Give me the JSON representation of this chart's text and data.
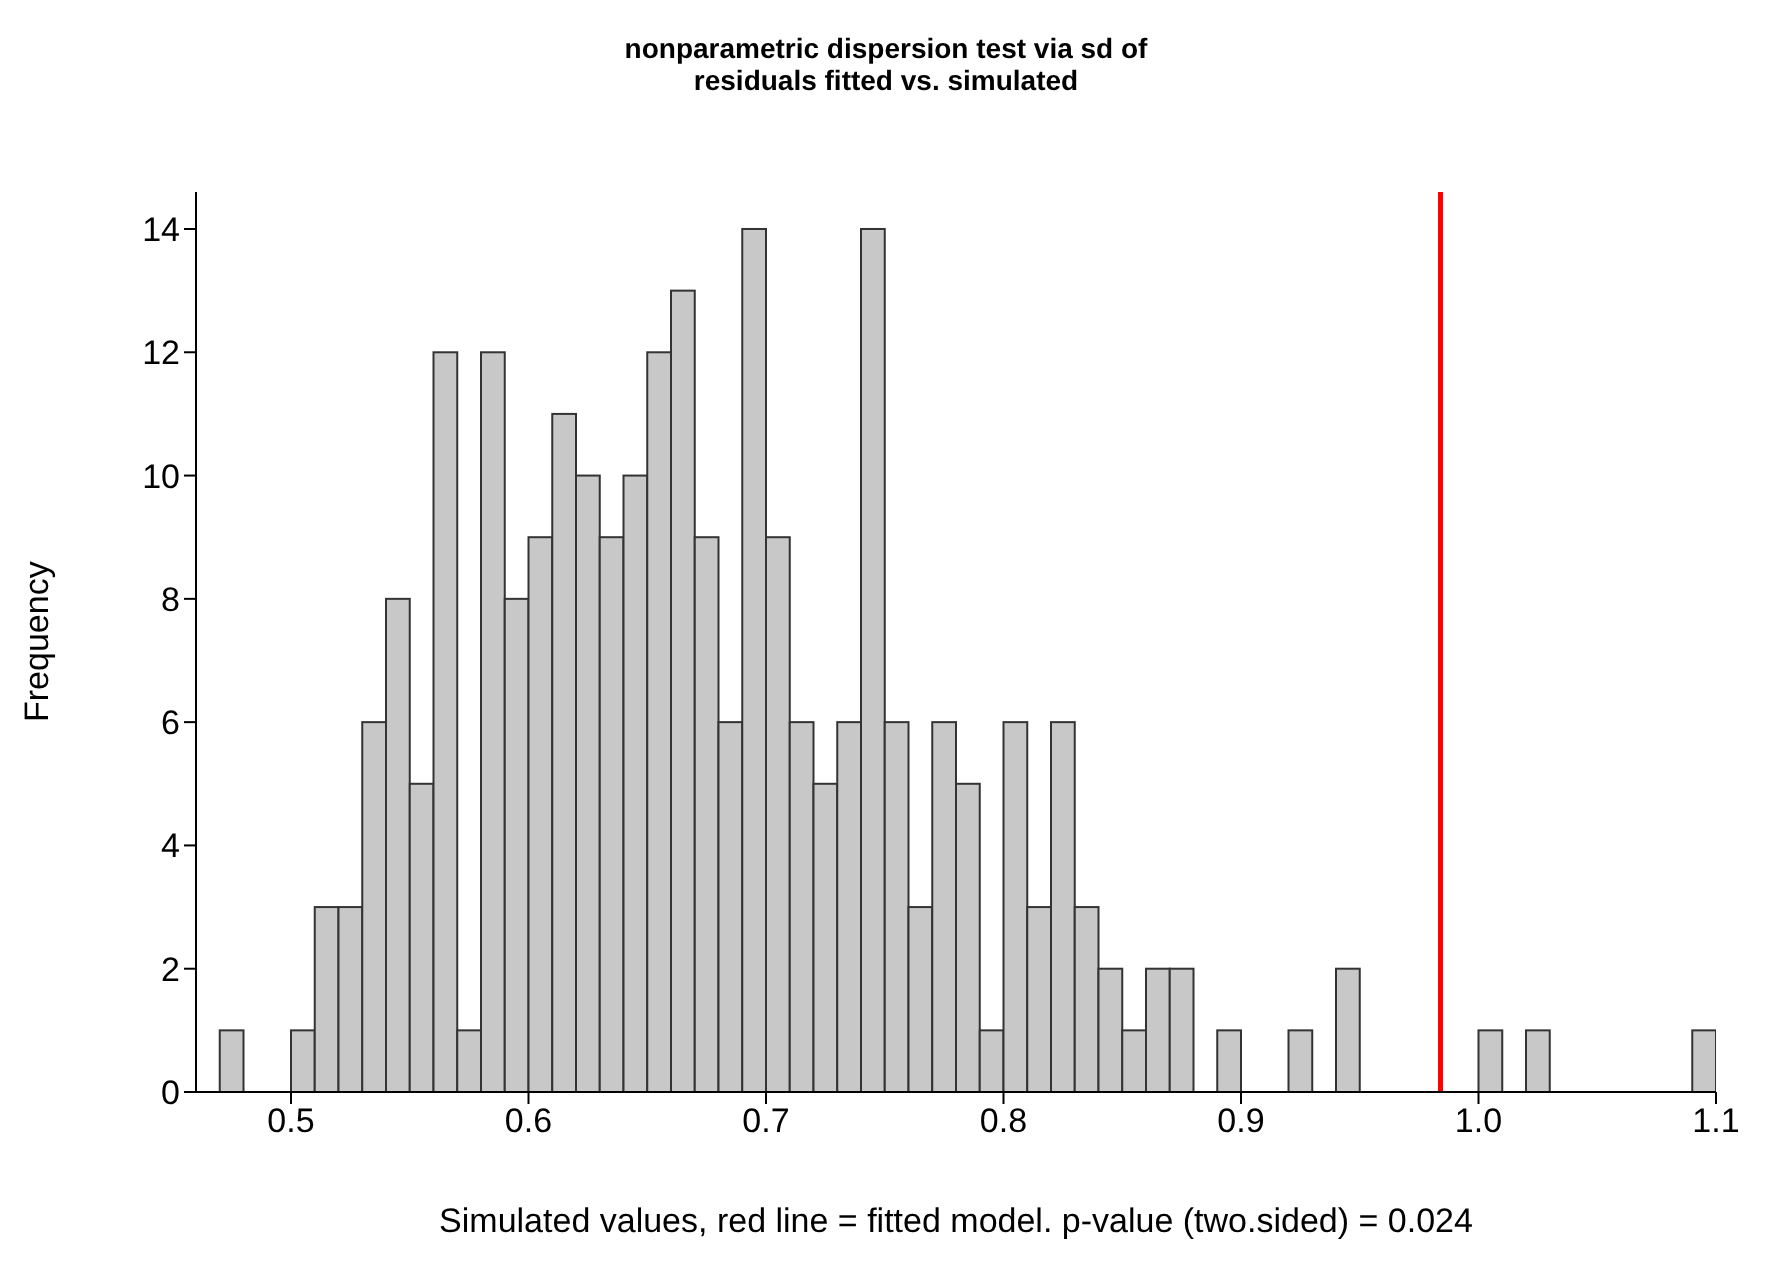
{
  "chart_data": {
    "type": "histogram",
    "title": "nonparametric dispersion test via sd of\nresiduals fitted vs. simulated",
    "xlabel": "Simulated values, red line = fitted model. p-value (two.sided) = 0.024",
    "ylabel": "Frequency",
    "bins": [
      0.47,
      0.48,
      0.49,
      0.5,
      0.51,
      0.52,
      0.53,
      0.54,
      0.55,
      0.56,
      0.57,
      0.58,
      0.59,
      0.6,
      0.61,
      0.62,
      0.63,
      0.64,
      0.65,
      0.66,
      0.67,
      0.68,
      0.69,
      0.7,
      0.71,
      0.72,
      0.73,
      0.74,
      0.75,
      0.76,
      0.77,
      0.78,
      0.79,
      0.8,
      0.81,
      0.82,
      0.83,
      0.84,
      0.85,
      0.86,
      0.87,
      0.88,
      0.89,
      0.9,
      0.91,
      0.92,
      0.93,
      0.94,
      0.95,
      0.96,
      0.97,
      0.98,
      0.99,
      1.0,
      1.01,
      1.02,
      1.03,
      1.04,
      1.05,
      1.06,
      1.07,
      1.08,
      1.09,
      1.1
    ],
    "values": [
      1,
      0,
      0,
      1,
      3,
      3,
      6,
      8,
      5,
      12,
      1,
      12,
      8,
      9,
      11,
      10,
      9,
      10,
      12,
      13,
      9,
      6,
      14,
      9,
      6,
      5,
      6,
      14,
      6,
      3,
      6,
      5,
      1,
      6,
      3,
      6,
      3,
      2,
      1,
      2,
      2,
      0,
      1,
      0,
      0,
      1,
      0,
      2,
      0,
      0,
      0,
      0,
      0,
      1,
      0,
      1,
      0,
      0,
      0,
      0,
      0,
      0,
      1
    ],
    "color": "#c8c8c8",
    "xlim": [
      0.46,
      1.1
    ],
    "xticks": [
      0.5,
      0.6,
      0.7,
      0.8,
      0.9,
      {
        "value": 1.0,
        "label": "1.0"
      },
      1.1
    ],
    "ylim": [
      0,
      14.6
    ],
    "yticks": [
      0,
      2,
      4,
      6,
      8,
      10,
      12,
      14
    ],
    "ref_lines": [
      {
        "axis": "x",
        "value": 0.984,
        "color": "#ff0000"
      }
    ],
    "grid": false
  }
}
